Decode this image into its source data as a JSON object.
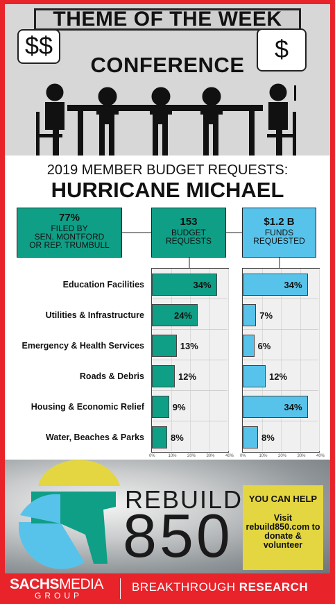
{
  "header": {
    "theme_title": "THEME OF THE WEEK",
    "conference": "CONFERENCE",
    "bubble_left": "$$",
    "bubble_right": "$"
  },
  "subtitle": "2019 MEMBER BUDGET REQUESTS:",
  "headline": "HURRICANE MICHAEL",
  "stats": {
    "filed": {
      "value": "77%",
      "line1": "FILED BY",
      "line2": "SEN. MONTFORD",
      "line3": "OR REP. TRUMBULL"
    },
    "budget": {
      "value": "153",
      "line1": "BUDGET",
      "line2": "REQUESTS"
    },
    "funds": {
      "value": "$1.2 B",
      "line1": "FUNDS",
      "line2": "REQUESTED"
    }
  },
  "chart_data": [
    {
      "type": "bar",
      "orientation": "horizontal",
      "title": "153 BUDGET REQUESTS",
      "categories": [
        "Education Facilities",
        "Utilities & Infrastructure",
        "Emergency & Health Services",
        "Roads & Debris",
        "Housing & Economic Relief",
        "Water, Beaches & Parks"
      ],
      "values": [
        34,
        24,
        13,
        12,
        9,
        8
      ],
      "value_labels": [
        "34%",
        "24%",
        "13%",
        "12%",
        "9%",
        "8%"
      ],
      "xlim": [
        0,
        40
      ],
      "xticks": [
        "0%",
        "10%",
        "20%",
        "30%",
        "40%"
      ],
      "color": "#0f9e86"
    },
    {
      "type": "bar",
      "orientation": "horizontal",
      "title": "$1.2 B FUNDS REQUESTED",
      "categories": [
        "Education Facilities",
        "Utilities & Infrastructure",
        "Emergency & Health Services",
        "Roads & Debris",
        "Housing & Economic Relief",
        "Water, Beaches & Parks"
      ],
      "values": [
        34,
        7,
        6,
        12,
        34,
        8
      ],
      "value_labels": [
        "34%",
        "7%",
        "6%",
        "12%",
        "34%",
        "8%"
      ],
      "xlim": [
        0,
        40
      ],
      "xticks": [
        "0%",
        "10%",
        "20%",
        "30%",
        "40%"
      ],
      "color": "#58c3ea"
    }
  ],
  "logo": {
    "line1": "REBUILD",
    "line2": "850"
  },
  "help": {
    "title": "YOU CAN HELP",
    "text": "Visit rebuild850.com to donate & volunteer"
  },
  "footer": {
    "brand_bold": "SACHS",
    "brand_light": "MEDIA",
    "group": "GROUP",
    "tagline_light": "BREAKTHROUGH ",
    "tagline_bold": "RESEARCH"
  },
  "colors": {
    "frame": "#e8232a",
    "teal": "#0f9e86",
    "blue": "#58c3ea",
    "help_bg": "#e3d640"
  }
}
